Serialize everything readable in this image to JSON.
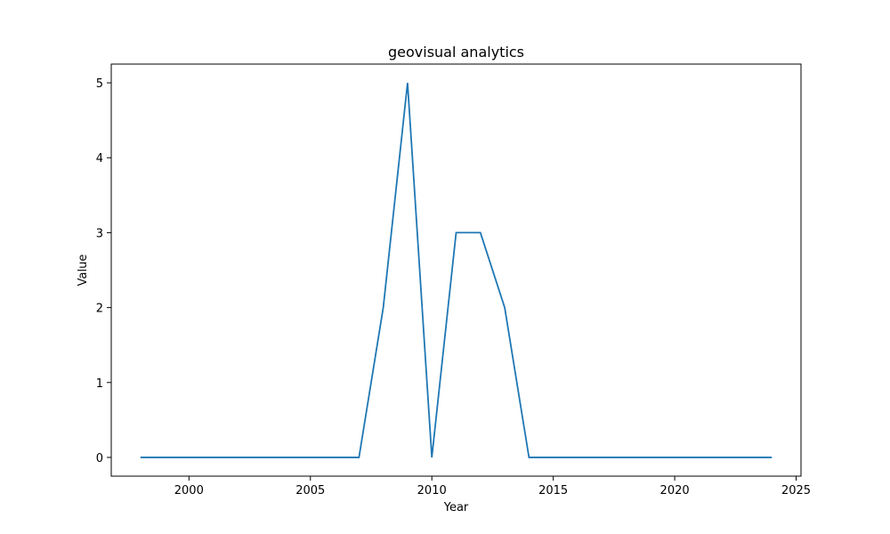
{
  "chart_data": {
    "type": "line",
    "title": "geovisual analytics",
    "xlabel": "Year",
    "ylabel": "Value",
    "xlim": [
      1996.8,
      2025.2
    ],
    "ylim": [
      -0.25,
      5.25
    ],
    "xticks": [
      2000,
      2005,
      2010,
      2015,
      2020,
      2025
    ],
    "yticks": [
      0,
      1,
      2,
      3,
      4,
      5
    ],
    "grid": false,
    "series": [
      {
        "color": "#1f77b4",
        "x": [
          1998,
          1999,
          2000,
          2001,
          2002,
          2003,
          2004,
          2005,
          2006,
          2007,
          2008,
          2009,
          2010,
          2011,
          2012,
          2013,
          2014,
          2015,
          2016,
          2017,
          2018,
          2019,
          2020,
          2021,
          2022,
          2023,
          2024
        ],
        "y": [
          0,
          0,
          0,
          0,
          0,
          0,
          0,
          0,
          0,
          0,
          2,
          5,
          0,
          3,
          3,
          2,
          0,
          0,
          0,
          0,
          0,
          0,
          0,
          0,
          0,
          0,
          0
        ]
      }
    ]
  }
}
